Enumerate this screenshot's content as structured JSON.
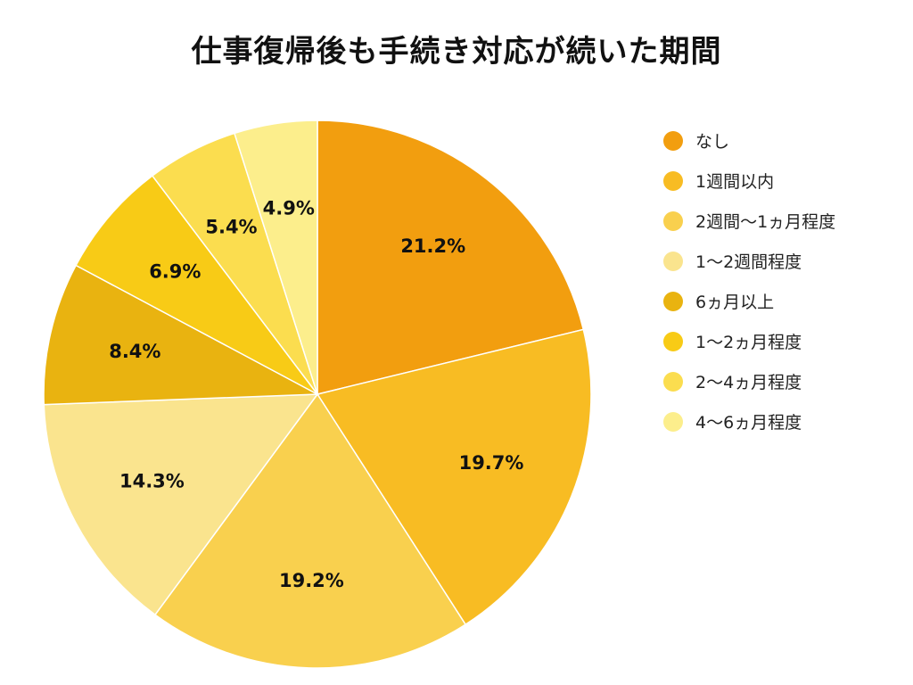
{
  "chart_data": {
    "type": "pie",
    "title": "仕事復帰後も手続き対応が続いた期間",
    "categories": [
      "なし",
      "1週間以内",
      "2週間〜1ヵ月程度",
      "1〜2週間程度",
      "6ヵ月以上",
      "1〜2ヵ月程度",
      "2〜4ヵ月程度",
      "4〜6ヵ月程度"
    ],
    "values": [
      21.2,
      19.7,
      19.2,
      14.3,
      8.4,
      6.9,
      5.4,
      4.9
    ],
    "value_labels": [
      "21.2%",
      "19.7%",
      "19.2%",
      "14.3%",
      "8.4%",
      "6.9%",
      "5.4%",
      "4.9%"
    ],
    "colors": [
      "#F29E0F",
      "#F8BC23",
      "#F9D04E",
      "#FAE48E",
      "#E9B310",
      "#F8CB16",
      "#FBDD4F",
      "#FCEE8C"
    ],
    "legend_position": "right",
    "start_angle_deg": 0,
    "direction": "clockwise"
  }
}
